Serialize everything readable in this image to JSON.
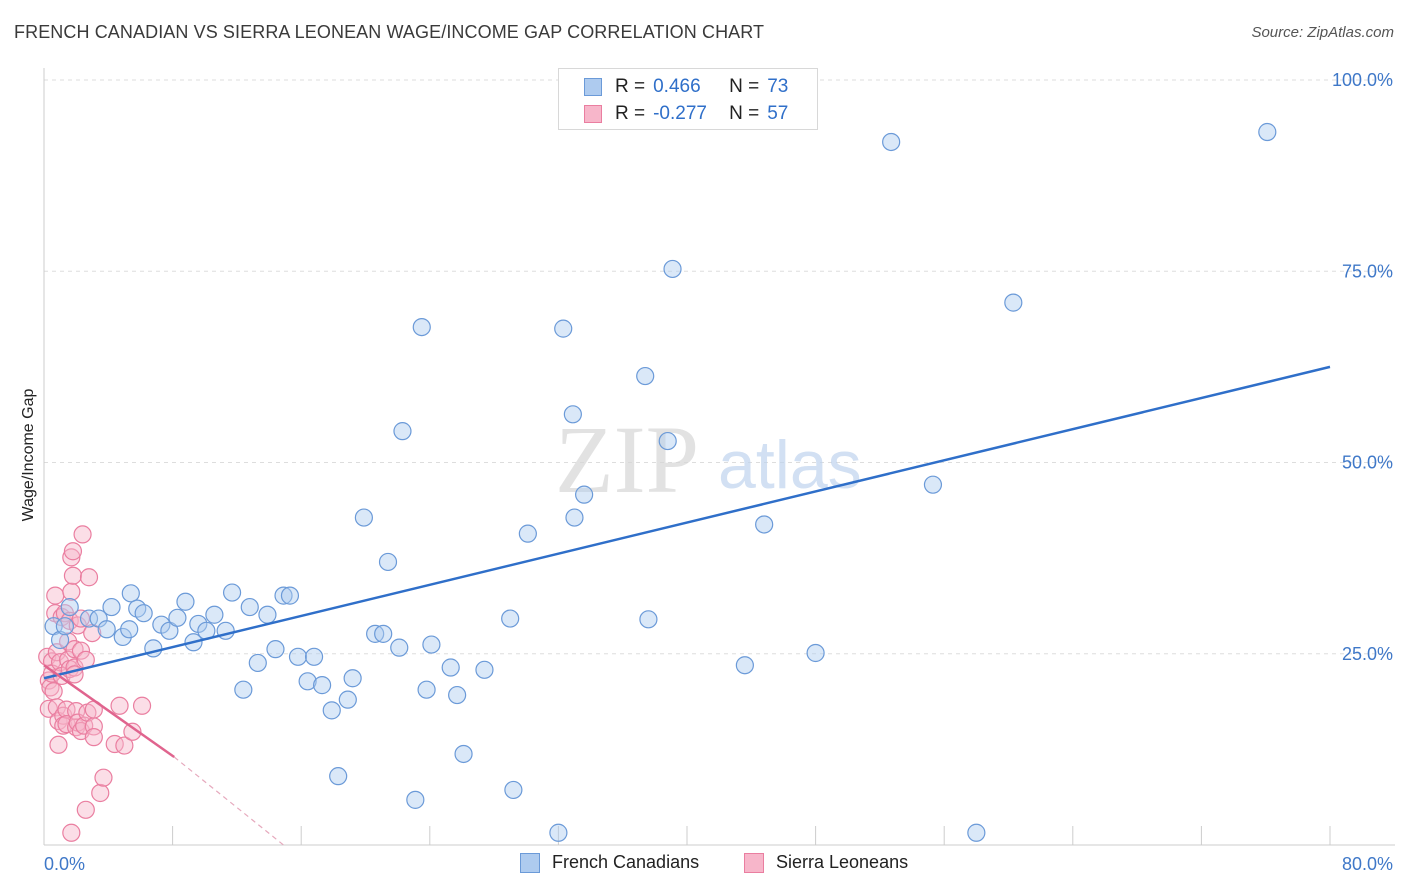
{
  "header": {
    "title": "FRENCH CANADIAN VS SIERRA LEONEAN WAGE/INCOME GAP CORRELATION CHART",
    "source": "Source: ZipAtlas.com"
  },
  "colors": {
    "blue_fill": "#aecbef",
    "blue_stroke": "#6b9ad8",
    "blue_line": "#2f6fc9",
    "pink_fill": "#f7b6ca",
    "pink_stroke": "#ea7ea0",
    "pink_line": "#e0648e",
    "axis_text": "#3f78c8",
    "grid": "#dddddd"
  },
  "legend": {
    "rows": [
      {
        "r_label": "R =",
        "r_value": "0.466",
        "n_label": "N =",
        "n_value": "73",
        "series": "blue"
      },
      {
        "r_label": "R =",
        "r_value": "-0.277",
        "n_label": "N =",
        "n_value": "57",
        "series": "pink"
      }
    ]
  },
  "watermark": {
    "part1": "ZIP",
    "part2": "atlas"
  },
  "chart_data": {
    "type": "scatter",
    "title": "FRENCH CANADIAN VS SIERRA LEONEAN WAGE/INCOME GAP CORRELATION CHART",
    "xlabel": "",
    "ylabel": "Wage/Income Gap",
    "xlim": [
      0,
      80
    ],
    "ylim": [
      0,
      102
    ],
    "x_tick_labels": [
      "0.0%",
      "80.0%"
    ],
    "y_ticks": [
      25,
      50,
      75,
      100
    ],
    "y_tick_labels": [
      "25.0%",
      "50.0%",
      "75.0%",
      "100.0%"
    ],
    "legend_position": "top-center",
    "series": [
      {
        "name": "French Canadians",
        "color": "blue",
        "r": 0.466,
        "n": 73,
        "trend": {
          "x": [
            0,
            80
          ],
          "y": [
            21.8,
            62.5
          ]
        },
        "points": [
          [
            0.6,
            28.6
          ],
          [
            1.0,
            26.8
          ],
          [
            1.3,
            28.6
          ],
          [
            1.6,
            31.1
          ],
          [
            2.8,
            29.6
          ],
          [
            3.4,
            29.6
          ],
          [
            3.9,
            28.2
          ],
          [
            4.2,
            31.1
          ],
          [
            4.9,
            27.2
          ],
          [
            5.3,
            28.2
          ],
          [
            5.4,
            32.9
          ],
          [
            5.8,
            30.9
          ],
          [
            6.2,
            30.3
          ],
          [
            6.8,
            25.7
          ],
          [
            7.3,
            28.8
          ],
          [
            7.8,
            28.0
          ],
          [
            8.3,
            29.7
          ],
          [
            8.8,
            31.8
          ],
          [
            9.3,
            26.5
          ],
          [
            9.6,
            28.9
          ],
          [
            10.1,
            28.0
          ],
          [
            10.6,
            30.1
          ],
          [
            11.3,
            28.0
          ],
          [
            11.7,
            33.0
          ],
          [
            12.4,
            20.3
          ],
          [
            12.8,
            31.1
          ],
          [
            13.3,
            23.8
          ],
          [
            13.9,
            30.1
          ],
          [
            14.4,
            25.6
          ],
          [
            14.9,
            32.6
          ],
          [
            15.3,
            32.6
          ],
          [
            15.8,
            24.6
          ],
          [
            16.4,
            21.4
          ],
          [
            16.8,
            24.6
          ],
          [
            17.3,
            20.9
          ],
          [
            17.9,
            17.6
          ],
          [
            18.3,
            9.0
          ],
          [
            18.9,
            19.0
          ],
          [
            19.2,
            21.8
          ],
          [
            19.9,
            42.8
          ],
          [
            20.6,
            27.6
          ],
          [
            21.1,
            27.6
          ],
          [
            21.4,
            37.0
          ],
          [
            22.1,
            25.8
          ],
          [
            22.3,
            54.1
          ],
          [
            23.1,
            5.9
          ],
          [
            23.5,
            67.7
          ],
          [
            23.8,
            20.3
          ],
          [
            24.1,
            26.2
          ],
          [
            25.3,
            23.2
          ],
          [
            25.7,
            19.6
          ],
          [
            26.1,
            11.9
          ],
          [
            27.4,
            22.9
          ],
          [
            29.0,
            29.6
          ],
          [
            29.2,
            7.2
          ],
          [
            30.1,
            40.7
          ],
          [
            32.0,
            1.6
          ],
          [
            32.3,
            67.5
          ],
          [
            32.9,
            56.3
          ],
          [
            33.0,
            42.8
          ],
          [
            33.6,
            45.8
          ],
          [
            37.4,
            61.3
          ],
          [
            37.6,
            29.5
          ],
          [
            38.8,
            52.8
          ],
          [
            39.1,
            75.3
          ],
          [
            43.6,
            23.5
          ],
          [
            44.8,
            41.9
          ],
          [
            48.0,
            25.1
          ],
          [
            52.7,
            91.9
          ],
          [
            55.3,
            47.1
          ],
          [
            58.0,
            1.6
          ],
          [
            60.3,
            70.9
          ],
          [
            76.1,
            93.2
          ]
        ]
      },
      {
        "name": "Sierra Leoneans",
        "color": "pink",
        "r": -0.277,
        "n": 57,
        "trend": {
          "x": [
            0,
            8.1
          ],
          "y": [
            23.5,
            11.5
          ],
          "dashed_to": {
            "x": [
              8.1,
              14.9
            ],
            "y": [
              11.5,
              0
            ]
          }
        },
        "points": [
          [
            0.2,
            24.6
          ],
          [
            0.3,
            21.5
          ],
          [
            0.3,
            17.8
          ],
          [
            0.4,
            20.6
          ],
          [
            0.5,
            24.0
          ],
          [
            0.5,
            22.4
          ],
          [
            0.6,
            20.1
          ],
          [
            0.7,
            32.6
          ],
          [
            0.7,
            30.3
          ],
          [
            0.8,
            25.2
          ],
          [
            0.8,
            18.0
          ],
          [
            0.9,
            16.2
          ],
          [
            0.9,
            13.1
          ],
          [
            1.0,
            23.9
          ],
          [
            1.1,
            29.8
          ],
          [
            1.1,
            22.1
          ],
          [
            1.2,
            16.9
          ],
          [
            1.2,
            15.6
          ],
          [
            1.3,
            30.3
          ],
          [
            1.4,
            17.7
          ],
          [
            1.4,
            15.8
          ],
          [
            1.5,
            24.2
          ],
          [
            1.5,
            26.6
          ],
          [
            1.6,
            23.0
          ],
          [
            1.7,
            1.6
          ],
          [
            1.7,
            37.6
          ],
          [
            1.7,
            33.1
          ],
          [
            1.6,
            29.3
          ],
          [
            1.8,
            38.4
          ],
          [
            1.8,
            35.2
          ],
          [
            1.9,
            25.6
          ],
          [
            1.9,
            23.2
          ],
          [
            1.9,
            22.3
          ],
          [
            2.0,
            15.4
          ],
          [
            2.0,
            17.5
          ],
          [
            2.1,
            16.0
          ],
          [
            2.1,
            28.7
          ],
          [
            2.3,
            29.6
          ],
          [
            2.3,
            25.4
          ],
          [
            2.3,
            14.9
          ],
          [
            2.4,
            40.6
          ],
          [
            2.5,
            15.6
          ],
          [
            2.6,
            24.2
          ],
          [
            2.6,
            4.6
          ],
          [
            2.7,
            17.3
          ],
          [
            2.8,
            35.0
          ],
          [
            3.0,
            27.7
          ],
          [
            3.1,
            15.5
          ],
          [
            3.1,
            14.1
          ],
          [
            3.1,
            17.7
          ],
          [
            3.5,
            6.8
          ],
          [
            3.7,
            8.8
          ],
          [
            4.4,
            13.2
          ],
          [
            4.7,
            18.2
          ],
          [
            5.0,
            13.0
          ],
          [
            5.5,
            14.8
          ],
          [
            6.1,
            18.2
          ]
        ]
      }
    ]
  },
  "bottom_legend": {
    "items": [
      {
        "label": "French Canadians",
        "color": "blue"
      },
      {
        "label": "Sierra Leoneans",
        "color": "pink"
      }
    ]
  }
}
